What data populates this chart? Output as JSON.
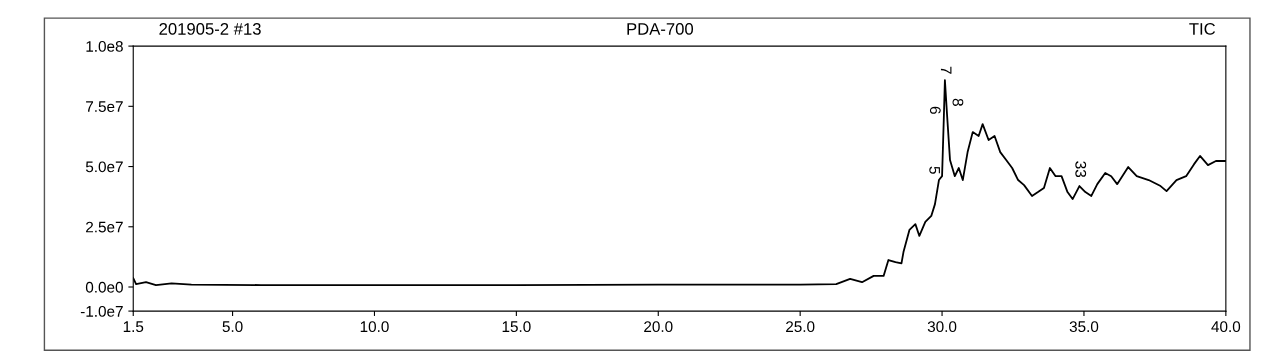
{
  "chart_data": {
    "type": "line",
    "title": "PDA-700",
    "annotations": [
      "201905-2 #13",
      "TIC",
      {
        "text": "5",
        "x": 29.89,
        "y": 44400000
      },
      {
        "text": "6",
        "x": 30.06,
        "y": 69300000
      },
      {
        "text": "7",
        "x": 30.1,
        "y": 85900000
      },
      {
        "text": "8",
        "x": 30.17,
        "y": 72600000
      },
      {
        "text": "33",
        "x": 34.84,
        "y": 41900000
      }
    ],
    "x": [
      1.5,
      1.6,
      1.95,
      2.3,
      2.85,
      3.55,
      6.0,
      10.0,
      15.0,
      20.0,
      24.0,
      25.0,
      26.27,
      26.76,
      27.18,
      27.59,
      27.94,
      28.11,
      28.36,
      28.57,
      28.64,
      28.85,
      29.06,
      29.2,
      29.41,
      29.62,
      29.75,
      29.89,
      30.0,
      30.06,
      30.1,
      30.17,
      30.28,
      30.45,
      30.59,
      30.73,
      30.9,
      31.08,
      31.29,
      31.43,
      31.64,
      31.85,
      32.05,
      32.26,
      32.47,
      32.68,
      32.89,
      33.17,
      33.38,
      33.59,
      33.8,
      34.0,
      34.21,
      34.42,
      34.6,
      34.84,
      35.05,
      35.26,
      35.47,
      35.75,
      35.96,
      36.17,
      36.56,
      36.86,
      37.28,
      37.7,
      37.91,
      38.26,
      38.6,
      38.88,
      39.09,
      39.37,
      39.65,
      40.0
    ],
    "series": [
      {
        "color": "#000000",
        "values": [
          3700000,
          1200000,
          2000000,
          800000,
          1500000,
          1000000,
          800000,
          800000,
          800000,
          1000000,
          1000000,
          1000000,
          1200000,
          3400000,
          2000000,
          4600000,
          4600000,
          11200000,
          10300000,
          9800000,
          14500000,
          23700000,
          26100000,
          21200000,
          27000000,
          29500000,
          34400000,
          44400000,
          46000000,
          69300000,
          85900000,
          72600000,
          52700000,
          46000000,
          49400000,
          44400000,
          56000000,
          64300000,
          62700000,
          67600000,
          61000000,
          62700000,
          56000000,
          52700000,
          49400000,
          44400000,
          42300000,
          37800000,
          39400000,
          41100000,
          49400000,
          46000000,
          46000000,
          39400000,
          36500000,
          41900000,
          39400000,
          37800000,
          42700000,
          47300000,
          46000000,
          42700000,
          49800000,
          46000000,
          44400000,
          41900000,
          39800000,
          44400000,
          46000000,
          51000000,
          54400000,
          50600000,
          52300000,
          52300000
        ]
      }
    ],
    "xlim": [
      1.5,
      40.0
    ],
    "ylim": [
      -10000000,
      100000000
    ],
    "xticks": [
      1.5,
      {
        "value": 5,
        "label": "5.0"
      },
      {
        "value": 10,
        "label": "10.0"
      },
      {
        "value": 15,
        "label": "15.0"
      },
      {
        "value": 20,
        "label": "20.0"
      },
      {
        "value": 25,
        "label": "25.0"
      },
      {
        "value": 30,
        "label": "30.0"
      },
      {
        "value": 35,
        "label": "35.0"
      },
      {
        "value": 40,
        "label": "40.0"
      }
    ],
    "yticks": [
      {
        "value": -10000000,
        "label": "-1.0e7"
      },
      {
        "value": 0,
        "label": "0.0e0"
      },
      {
        "value": 25000000,
        "label": "2.5e7"
      },
      {
        "value": 50000000,
        "label": "5.0e7"
      },
      {
        "value": 75000000,
        "label": "7.5e7"
      },
      {
        "value": 100000000,
        "label": "1.0e8"
      }
    ],
    "grid": false,
    "legend": false,
    "marker": "none",
    "line_style": "solid"
  }
}
